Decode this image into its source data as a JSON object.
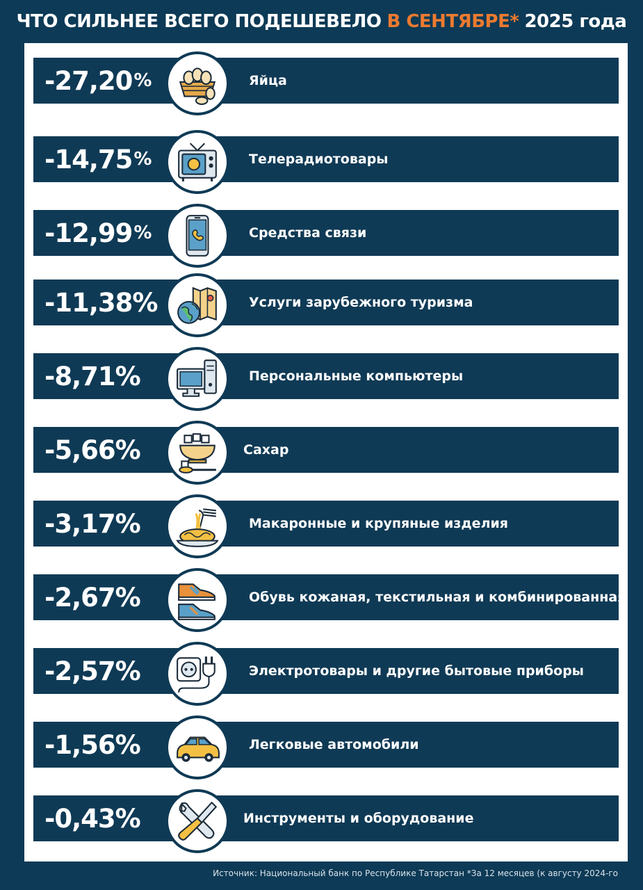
{
  "header": {
    "title_part1": "ЧТО СИЛЬНЕЕ ВСЕГО ПОДЕШЕВЕЛО",
    "title_accent": "В СЕНТЯБРЕ*",
    "title_part2": "2025 года"
  },
  "items": [
    {
      "value": "-27,20",
      "sign": "%",
      "label": "Яйца",
      "icon": "eggs-icon"
    },
    {
      "value": "-14,75",
      "sign": "%",
      "label": "Телерадиотовары",
      "icon": "tv-icon"
    },
    {
      "value": "-12,99",
      "sign": "%",
      "label": "Средства связи",
      "icon": "phone-icon"
    },
    {
      "value": "-11,38",
      "sign": "%",
      "label": "Услуги зарубежного туризма",
      "icon": "globe-map-icon"
    },
    {
      "value": "-8,71",
      "sign": "%",
      "label": "Персональные компьютеры",
      "icon": "computer-icon"
    },
    {
      "value": "-5,66",
      "sign": "%",
      "label": "Сахар",
      "icon": "sugar-bowl-icon"
    },
    {
      "value": "-3,17",
      "sign": "%",
      "label": "Макаронные и крупяные изделия",
      "icon": "pasta-icon"
    },
    {
      "value": "-2,67",
      "sign": "%",
      "label": "Обувь кожаная, текстильная и комбинированная",
      "icon": "shoes-icon"
    },
    {
      "value": "-2,57",
      "sign": "%",
      "label": "Электротовары и другие бытовые приборы",
      "icon": "socket-plug-icon"
    },
    {
      "value": "-1,56",
      "sign": "%",
      "label": "Легковые автомобили",
      "icon": "car-icon"
    },
    {
      "value": "-0,43",
      "sign": "%",
      "label": "Инструменты и оборудование",
      "icon": "tools-icon"
    }
  ],
  "footer": {
    "source": "Источник: Национальный банк по Республике Татарстан *За 12 месяцев (к августу 2024-го"
  },
  "colors": {
    "background": "#0d3a56",
    "accent": "#ec7a30",
    "bar": "#0f3a55",
    "panel": "#ffffff"
  }
}
